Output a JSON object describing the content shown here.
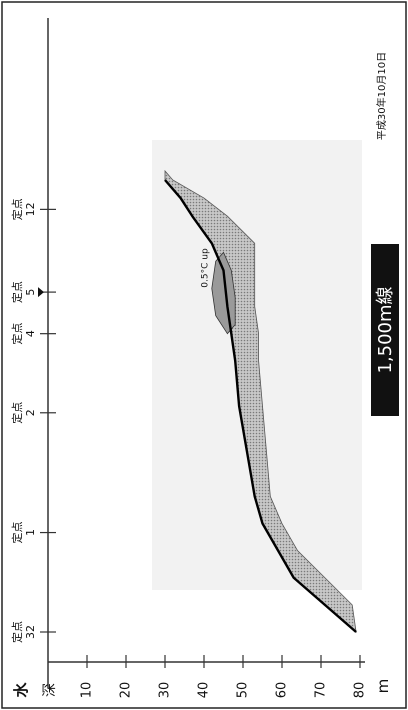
{
  "chart_data": {
    "type": "area",
    "title": "1,500m線",
    "date": "平成30年10月10日",
    "axis_title_top": "水",
    "axis_title_bottom": "深",
    "y_unit": "m",
    "y_ticks": [
      "10",
      "20",
      "30",
      "40",
      "50",
      "60",
      "70",
      "80"
    ],
    "ylim": [
      0,
      80
    ],
    "stations": [
      {
        "name": "定点",
        "num": "32",
        "pos": 0.0
      },
      {
        "name": "定点",
        "num": "1",
        "pos": 0.22
      },
      {
        "name": "定点",
        "num": "2",
        "pos": 0.485
      },
      {
        "name": "定点",
        "num": "4",
        "pos": 0.66
      },
      {
        "name": "定点",
        "num": "5",
        "pos": 0.752
      },
      {
        "name": "定点",
        "num": "12",
        "pos": 0.935
      }
    ],
    "marker_station": "5",
    "annotation": "0.5°C up",
    "bottom_profile": {
      "x": [
        0.0,
        0.06,
        0.12,
        0.18,
        0.24,
        0.3,
        0.4,
        0.5,
        0.6,
        0.66,
        0.72,
        0.8,
        0.86,
        0.92,
        0.96,
        1.0
      ],
      "depth": [
        79,
        71,
        63,
        59,
        55,
        53,
        51,
        49,
        48,
        47,
        46,
        45,
        42,
        37,
        34,
        30
      ]
    },
    "warm_water": {
      "x": [
        0.0,
        0.06,
        0.12,
        0.18,
        0.24,
        0.3,
        0.4,
        0.5,
        0.6,
        0.66,
        0.72,
        0.8,
        0.86,
        0.92,
        0.96,
        1.0,
        1.02
      ],
      "upper_depth": [
        79,
        71,
        63,
        59,
        55,
        53,
        51,
        49,
        48,
        47,
        46,
        45,
        42,
        37,
        34,
        30,
        30
      ],
      "lower_depth": [
        79,
        78,
        71,
        64,
        60,
        57,
        56,
        55,
        54,
        54,
        53,
        53,
        53,
        46,
        40,
        32,
        30
      ]
    },
    "warm_pocket": {
      "x": [
        0.66,
        0.7,
        0.76,
        0.82,
        0.84,
        0.8,
        0.74,
        0.68
      ],
      "depth": [
        46,
        43,
        42,
        43,
        45,
        47,
        48,
        48
      ]
    },
    "grid": false
  }
}
